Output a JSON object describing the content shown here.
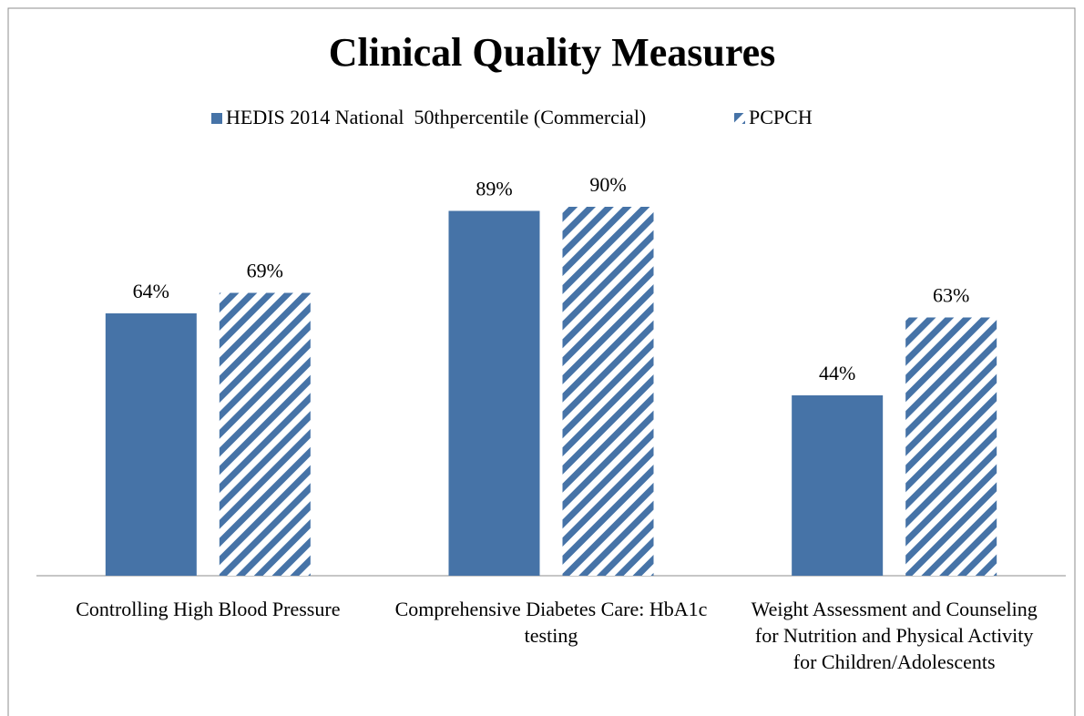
{
  "chart_data": {
    "type": "bar",
    "title": "Clinical Quality Measures",
    "categories": [
      "Controlling High Blood Pressure",
      "Comprehensive Diabetes Care: HbA1c testing",
      "Weight Assessment and Counseling for Nutrition and Physical Activity for Children/Adolescents"
    ],
    "series": [
      {
        "name": "HEDIS 2014 National  50thpercentile (Commercial)",
        "color": "#4673a7",
        "pattern": "solid",
        "values": [
          64,
          89,
          44
        ],
        "value_labels": [
          "64%",
          "89%",
          "44%"
        ]
      },
      {
        "name": "PCPCH",
        "color": "#4673a7",
        "pattern": "diagonal-stripes",
        "values": [
          69,
          90,
          63
        ],
        "value_labels": [
          "69%",
          "90%",
          "63%"
        ]
      }
    ],
    "legend": "top"
  }
}
